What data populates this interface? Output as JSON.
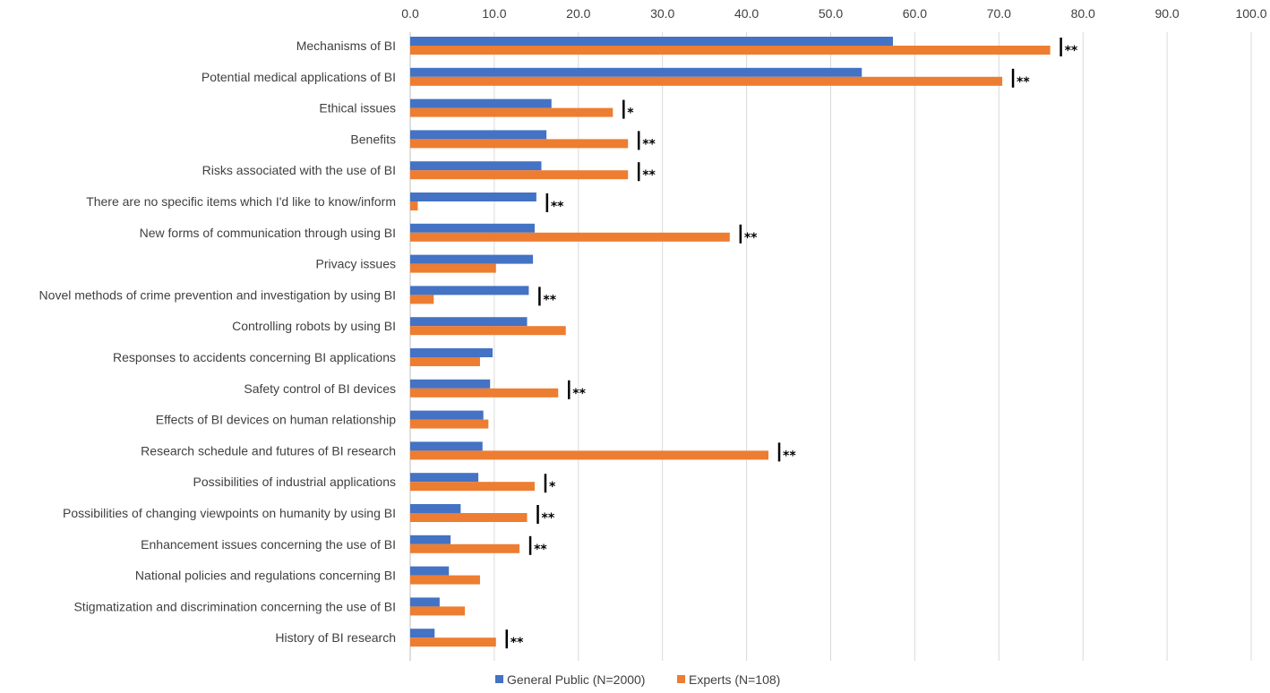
{
  "chart_data": {
    "type": "bar",
    "orientation": "horizontal",
    "xlim": [
      0,
      100
    ],
    "x_ticks": [
      "0.0",
      "10.0",
      "20.0",
      "30.0",
      "40.0",
      "50.0",
      "60.0",
      "70.0",
      "80.0",
      "90.0",
      "100.0"
    ],
    "x_axis_position": "top",
    "grid": true,
    "legend_position": "bottom",
    "categories": [
      "Mechanisms of BI",
      "Potential medical applications of BI",
      "Ethical issues",
      "Benefits",
      "Risks associated with the use of BI",
      "There are no specific items which I'd like to know/inform",
      "New forms of communication through using BI",
      "Privacy issues",
      "Novel methods of crime prevention and investigation by using BI",
      "Controlling robots by using BI",
      "Responses to accidents concerning BI applications",
      "Safety control of BI devices",
      "Effects of BI devices on human relationship",
      "Research schedule and futures of BI research",
      "Possibilities of industrial applications",
      "Possibilities of changing viewpoints on humanity by using BI",
      "Enhancement issues concerning the use of BI",
      "National policies and regulations concerning BI",
      "Stigmatization and discrimination concerning the use of BI",
      "History of BI research"
    ],
    "series": [
      {
        "name": "General Public (N=2000)",
        "color": "#4472C4",
        "values": [
          57.4,
          53.7,
          16.8,
          16.2,
          15.6,
          15.0,
          14.8,
          14.6,
          14.1,
          13.9,
          9.8,
          9.5,
          8.7,
          8.6,
          8.1,
          6.0,
          4.8,
          4.6,
          3.5,
          2.9
        ]
      },
      {
        "name": "Experts (N=108)",
        "color": "#ED7D31",
        "values": [
          76.1,
          70.4,
          24.1,
          25.9,
          25.9,
          0.9,
          38.0,
          10.2,
          2.8,
          18.5,
          8.3,
          17.6,
          9.3,
          42.6,
          14.8,
          13.9,
          13.0,
          8.3,
          6.5,
          10.2
        ]
      }
    ],
    "significance": [
      "**",
      "**",
      "*",
      "**",
      "**",
      "**",
      "**",
      "",
      "**",
      "",
      "",
      "**",
      "",
      "**",
      "*",
      "**",
      "**",
      "",
      "",
      "**"
    ]
  }
}
